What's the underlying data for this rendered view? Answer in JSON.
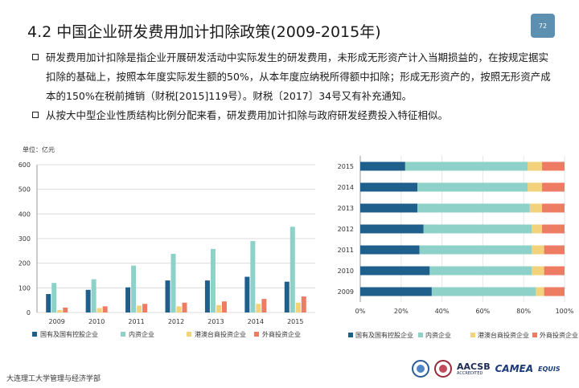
{
  "header": {
    "title": "4.2  中国企业研发费用加计扣除政策(2009-2015年)",
    "page_number": "72"
  },
  "bullets": [
    "研发费用加计扣除是指企业开展研发活动中实际发生的研发费用，未形成无形资产计入当期损益的，在按规定据实扣除的基础上，按照本年度实际发生额的50%，从本年度应纳税所得额中扣除；形成无形资产的，按照无形资产成本的150%在税前摊销（财税[2015]119号）。财税〔2017〕34号又有补充通知。",
    "从按大中型企业性质结构比例分配来看，研发费用加计扣除与政府研发经费投入特征相似。"
  ],
  "legend_labels": [
    "国有及国有控股企业",
    "内资企业",
    "港澳台商投资企业",
    "外商投资企业"
  ],
  "colors": {
    "s1": "#1f5f8b",
    "s2": "#8ed1c9",
    "s3": "#f2d27a",
    "s4": "#ee7b63"
  },
  "chart_data": [
    {
      "type": "bar",
      "unit_label": "单位：亿元",
      "categories": [
        "2009",
        "2010",
        "2011",
        "2012",
        "2013",
        "2014",
        "2015"
      ],
      "ylim": [
        0,
        600
      ],
      "yticks": [
        0,
        100,
        200,
        300,
        400,
        500,
        600
      ],
      "grid": true,
      "legend": "bottom",
      "series": [
        {
          "name": "国有及国有控股企业",
          "values": [
            75,
            92,
            102,
            130,
            130,
            145,
            125
          ]
        },
        {
          "name": "内资企业",
          "values": [
            120,
            135,
            190,
            238,
            258,
            290,
            348
          ]
        },
        {
          "name": "港澳台商投资企业",
          "values": [
            10,
            18,
            28,
            25,
            30,
            35,
            40
          ]
        },
        {
          "name": "外商投资企业",
          "values": [
            20,
            25,
            35,
            40,
            45,
            55,
            65
          ]
        }
      ]
    },
    {
      "type": "bar",
      "stacked": "percent",
      "orientation": "horizontal",
      "categories": [
        "2015",
        "2014",
        "2013",
        "2012",
        "2011",
        "2010",
        "2009"
      ],
      "xticks": [
        "0%",
        "20%",
        "40%",
        "60%",
        "80%",
        "100%"
      ],
      "legend": "bottom",
      "series": [
        {
          "name": "国有及国有控股企业",
          "values": [
            22,
            28,
            28,
            31,
            29,
            34,
            35
          ]
        },
        {
          "name": "内资企业",
          "values": [
            60,
            54,
            55,
            53,
            55,
            50,
            51
          ]
        },
        {
          "name": "港澳台商投资企业",
          "values": [
            7,
            7,
            6,
            5,
            6,
            6,
            4
          ]
        },
        {
          "name": "外商投资企业",
          "values": [
            11,
            11,
            11,
            11,
            10,
            10,
            10
          ]
        }
      ]
    }
  ],
  "footer": {
    "institution": "大连理工大学管理与经济学部",
    "logos": {
      "aacsb": "AACSB",
      "aacsb_sub": "ACCREDITED",
      "camea": "CAMEA",
      "equis": "EQUIS"
    }
  }
}
